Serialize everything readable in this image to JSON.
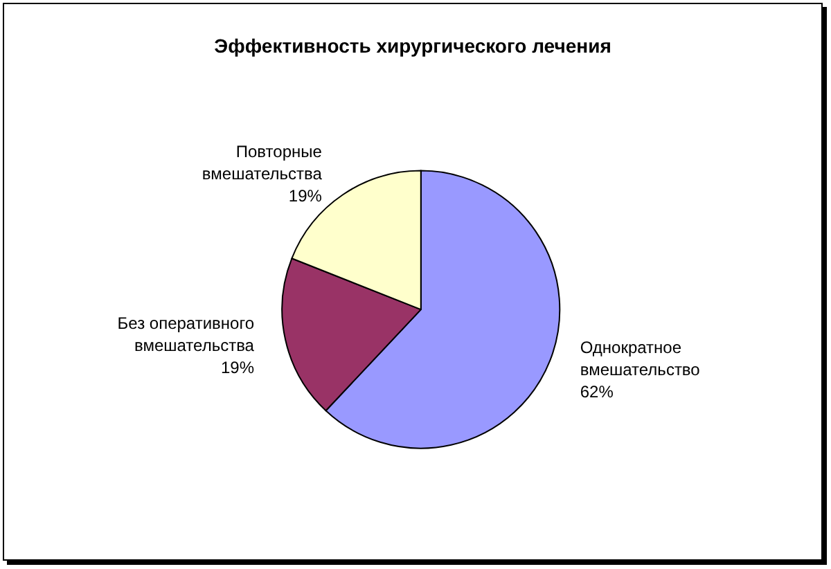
{
  "chart_data": {
    "type": "pie",
    "title": "Эффективность хирургического лечения",
    "categories": [
      "Однократное вмешательство",
      "Без оперативного вмешательства",
      "Повторные вмешательства"
    ],
    "values": [
      62,
      19,
      19
    ],
    "value_labels": [
      "62%",
      "19%",
      "19%"
    ],
    "colors": [
      "#9999ff",
      "#993366",
      "#ffffcc"
    ],
    "legend": false
  }
}
